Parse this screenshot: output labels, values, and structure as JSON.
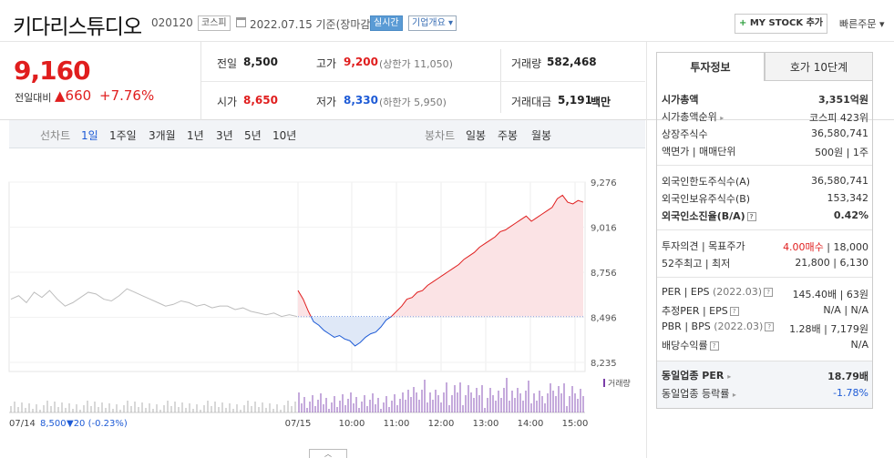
{
  "header": {
    "title": "키다리스튜디오",
    "code": "020120",
    "market": "코스피",
    "date": "2022.07.15 기준(장마감)",
    "realtime": "실시간",
    "overview": "기업개요 ▾",
    "mystock": "MY STOCK 추가",
    "mystock_plus": "+",
    "quick_order": "빠른주문 ▾"
  },
  "price": {
    "current": "9,160",
    "change_label": "전일대비",
    "change": "▲660",
    "change_pct": "+7.76%"
  },
  "quote": {
    "prev_label": "전일",
    "prev": "8,500",
    "high_label": "고가",
    "high": "9,200",
    "upper_limit": "(상한가 11,050)",
    "volume_label": "거래량",
    "volume": "582,468",
    "open_label": "시가",
    "open": "8,650",
    "low_label": "저가",
    "low": "8,330",
    "lower_limit": "(하한가 5,950)",
    "amount_label": "거래대금",
    "amount": "5,191",
    "amount_unit": "백만"
  },
  "period": {
    "line_label": "선차트",
    "line_items": [
      "1일",
      "1주일",
      "3개월",
      "1년",
      "3년",
      "5년",
      "10년"
    ],
    "candle_label": "봉차트",
    "candle_items": [
      "일봉",
      "주봉",
      "월봉"
    ]
  },
  "chart_data": {
    "type": "line",
    "y_ticks": [
      "9,276",
      "9,016",
      "8,756",
      "8,496",
      "8,235"
    ],
    "ylim": [
      8235,
      9276
    ],
    "baseline": 8500,
    "x_ticks": [
      "07/15",
      "10:00",
      "11:00",
      "12:00",
      "13:00",
      "14:00",
      "15:00"
    ],
    "volume_label": "거래량",
    "prev_day_label": "07/14",
    "prev_day_close": "8,500",
    "prev_day_change": "▼20 (-0.23%)",
    "prev_day_series": [
      8600,
      8620,
      8580,
      8640,
      8610,
      8650,
      8600,
      8560,
      8580,
      8610,
      8640,
      8630,
      8600,
      8590,
      8620,
      8660,
      8640,
      8620,
      8600,
      8580,
      8560,
      8570,
      8590,
      8580,
      8560,
      8570,
      8550,
      8560,
      8560,
      8540,
      8550,
      8530,
      8520,
      8510,
      8520,
      8500,
      8510,
      8500
    ],
    "today_series": [
      8650,
      8600,
      8530,
      8470,
      8450,
      8420,
      8400,
      8380,
      8390,
      8370,
      8360,
      8330,
      8350,
      8380,
      8400,
      8410,
      8440,
      8480,
      8500,
      8530,
      8560,
      8600,
      8610,
      8640,
      8650,
      8680,
      8700,
      8720,
      8740,
      8760,
      8780,
      8800,
      8830,
      8850,
      8870,
      8900,
      8920,
      8940,
      8960,
      8990,
      9000,
      9020,
      9040,
      9060,
      9080,
      9050,
      9070,
      9090,
      9110,
      9130,
      9180,
      9200,
      9160,
      9150,
      9170,
      9160
    ]
  },
  "tabs": {
    "invest": "투자정보",
    "hoga": "호가 10단계"
  },
  "info": {
    "market_cap_label": "시가총액",
    "market_cap": "3,351억원",
    "cap_rank_label": "시가총액순위",
    "cap_rank": "코스피 423위",
    "shares_label": "상장주식수",
    "shares": "36,580,741",
    "par_label": "액면가 | 매매단위",
    "par": "500원 | 1주",
    "foreign_limit_label": "외국인한도주식수(A)",
    "foreign_limit": "36,580,741",
    "foreign_hold_label": "외국인보유주식수(B)",
    "foreign_hold": "153,342",
    "foreign_ratio_label": "외국인소진율(B/A)",
    "foreign_ratio": "0.42%",
    "opinion_label": "투자의견 | 목표주가",
    "opinion": "4.00매수",
    "target": "| 18,000",
    "w52_label": "52주최고 | 최저",
    "w52": "21,800 | 6,130",
    "per_label": "PER | EPS",
    "per_date": "(2022.03)",
    "per": "145.40배 | 63원",
    "est_per_label": "추정PER | EPS",
    "est_per": "N/A | N/A",
    "pbr_label": "PBR | BPS",
    "pbr_date": "(2022.03)",
    "pbr": "1.28배 | 7,179원",
    "div_label": "배당수익률",
    "div": "N/A",
    "ind_per_label": "동일업종 PER",
    "ind_per": "18.79배",
    "ind_rate_label": "동일업종 등락률",
    "ind_rate": "-1.78%"
  },
  "colors": {
    "up": "#e01e1e",
    "down": "#1e5bd6",
    "up_fill": "#fbe3e5",
    "down_fill": "#dfe8f7"
  }
}
